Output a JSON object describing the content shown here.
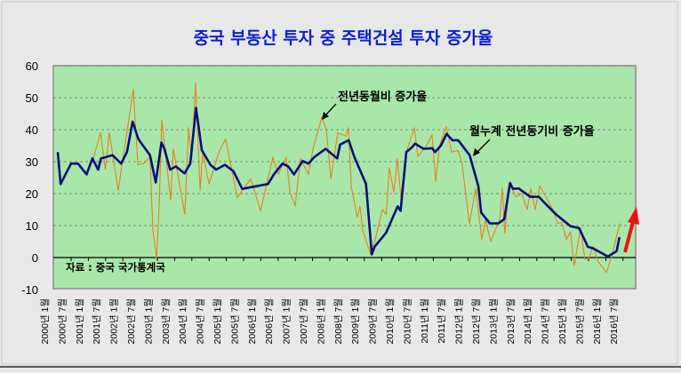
{
  "chart_data": {
    "type": "line",
    "title": "중국 부동산 투자 중 주택건설 투자 증가율",
    "xlabel": "",
    "ylabel": "",
    "ylim": [
      -10,
      60
    ],
    "yticks": [
      "60",
      "50",
      "40",
      "30",
      "20",
      "10",
      "0",
      "-10"
    ],
    "ytick_values": [
      60,
      50,
      40,
      30,
      20,
      10,
      0,
      -10
    ],
    "x_unit": "months since 2000년 1월",
    "xticks": [
      "2000년 1월",
      "2000년 7월",
      "2001년 1월",
      "2001년 7월",
      "2002년 1월",
      "2002년 7월",
      "2003년 1월",
      "2003년 7월",
      "2004년 1월",
      "2004년 7월",
      "2005년 1월",
      "2005년 7월",
      "2006년 1월",
      "2006년 7월",
      "2007년 1월",
      "2007년 7월",
      "2008년 1월",
      "2008년 7월",
      "2009년 1월",
      "2009년 7월",
      "2010년 1월",
      "2010년 7월",
      "2011년 1월",
      "2011년 7월",
      "2012년 1월",
      "2012년 7월",
      "2013년 1월",
      "2013년 7월",
      "2014년 1월",
      "2014년 7월",
      "2015년 1월",
      "2015년 7월",
      "2016년 1월",
      "2016년 7월"
    ],
    "grid": true,
    "series": [
      {
        "name": "전년동월비 증가율",
        "color": "#e8801a",
        "x": [
          12.3,
          14.8,
          16.5,
          17.9,
          21,
          26.2,
          27.8,
          30,
          32,
          33,
          34.3,
          35.2,
          36.1,
          39.2,
          40.1,
          44.1,
          45.4,
          46.5,
          47.8,
          49.4,
          50.3,
          52.5,
          56.2,
          58.3,
          62.3,
          67,
          70.4,
          74.7,
          76.5,
          79.3,
          80.6,
          82.4,
          84.3,
          87,
          88.6,
          91.7,
          93.2,
          94.8,
          97.2,
          100,
          100.9,
          101.9,
          104,
          104.9,
          105.9,
          108.6,
          110.2,
          112.7,
          114,
          115.1,
          116.7,
          117.9,
          119.1,
          121,
          123.8,
          125,
          128,
          129.9,
          131.2,
          132.5,
          134.9,
          136.7,
          139,
          140.4,
          142.9,
          145.1,
          147.2,
          148.5,
          150.3,
          153.4,
          154.3,
          155.2,
          156.8,
          159,
          161,
          163,
          164.2,
          165.7,
          167.3,
          171.9,
          173.5,
          175,
          176.5,
          178,
          179.3,
          181.5,
          183,
          184.5,
          185.8,
          187.7,
          190.5,
          192.4,
          195.1
        ],
        "values": [
          31,
          39,
          27.5,
          39,
          21,
          52.6,
          29,
          29.5,
          31.5,
          9,
          -0.5,
          16,
          43,
          18,
          34,
          13.5,
          40.6,
          31,
          54.6,
          21,
          33,
          23,
          33.6,
          37,
          18.8,
          24.6,
          14.6,
          31.4,
          26,
          31.4,
          20.4,
          16.2,
          31,
          26,
          34,
          44,
          40,
          24.6,
          39,
          38,
          40.6,
          22,
          12.6,
          16,
          8.4,
          1,
          5.6,
          15,
          13.5,
          28,
          20.4,
          31,
          18.8,
          33,
          40.6,
          31.6,
          35,
          38.4,
          23.8,
          35,
          41,
          33,
          33.5,
          29,
          10.6,
          21.6,
          5.6,
          11.7,
          5,
          12,
          21.8,
          7.6,
          23.3,
          19,
          20,
          15,
          21.6,
          15,
          22.4,
          15,
          10.7,
          11,
          5.6,
          8,
          -2.5,
          9.2,
          -0.5,
          0,
          3.4,
          -1.4,
          -4.7,
          0.8,
          10.7
        ]
      },
      {
        "name": "월누계 전년동기비 증가율",
        "color": "#0a0f7a",
        "x": [
          0,
          1,
          4.6,
          7,
          10,
          12,
          14,
          15,
          19,
          22,
          24,
          26,
          28,
          32,
          34,
          36,
          37,
          39,
          41,
          44,
          46,
          48,
          50,
          53,
          55,
          58,
          61,
          64,
          67,
          73,
          75,
          78,
          80,
          82,
          85,
          87,
          89,
          93,
          97,
          98,
          101,
          103,
          107,
          109,
          110,
          114,
          118,
          119,
          121,
          123,
          124,
          127,
          130,
          131,
          133,
          135,
          137,
          139,
          143,
          146,
          147,
          150,
          153,
          155,
          157,
          158,
          160,
          164,
          167,
          170,
          173,
          178,
          181,
          184,
          186,
          191,
          194,
          195
        ],
        "values": [
          33,
          23,
          29.4,
          29.4,
          26,
          31,
          27.5,
          31,
          32,
          29.4,
          33,
          42.5,
          37,
          32,
          23.5,
          36,
          34,
          27.5,
          28.5,
          26.3,
          29.4,
          46.8,
          33.6,
          29,
          27.5,
          29,
          27,
          21.5,
          22,
          23,
          26,
          29.4,
          28.5,
          26,
          30.2,
          29.4,
          31.4,
          34,
          31,
          35.3,
          36.7,
          31.4,
          23,
          1,
          3.4,
          7.8,
          16,
          14.6,
          33,
          34.5,
          35.6,
          34,
          34.2,
          33,
          35,
          38.7,
          36.7,
          36.7,
          32,
          22.4,
          14,
          10.7,
          10.7,
          12,
          23.3,
          21.5,
          21.6,
          19,
          19,
          16.2,
          13.5,
          9.8,
          9.2,
          3.4,
          2.8,
          0.3,
          2,
          6.4
        ]
      }
    ],
    "annotations": {
      "monthly": "전년동월비 증가율",
      "cumulative": "월누계 전년동기비 증가율",
      "source": "자료 : 중국 국가통계국"
    },
    "colors": {
      "plot_bg": "#a9e6aa",
      "negative_tick": "#e00000",
      "trend_arrow": "#ee1010"
    }
  }
}
